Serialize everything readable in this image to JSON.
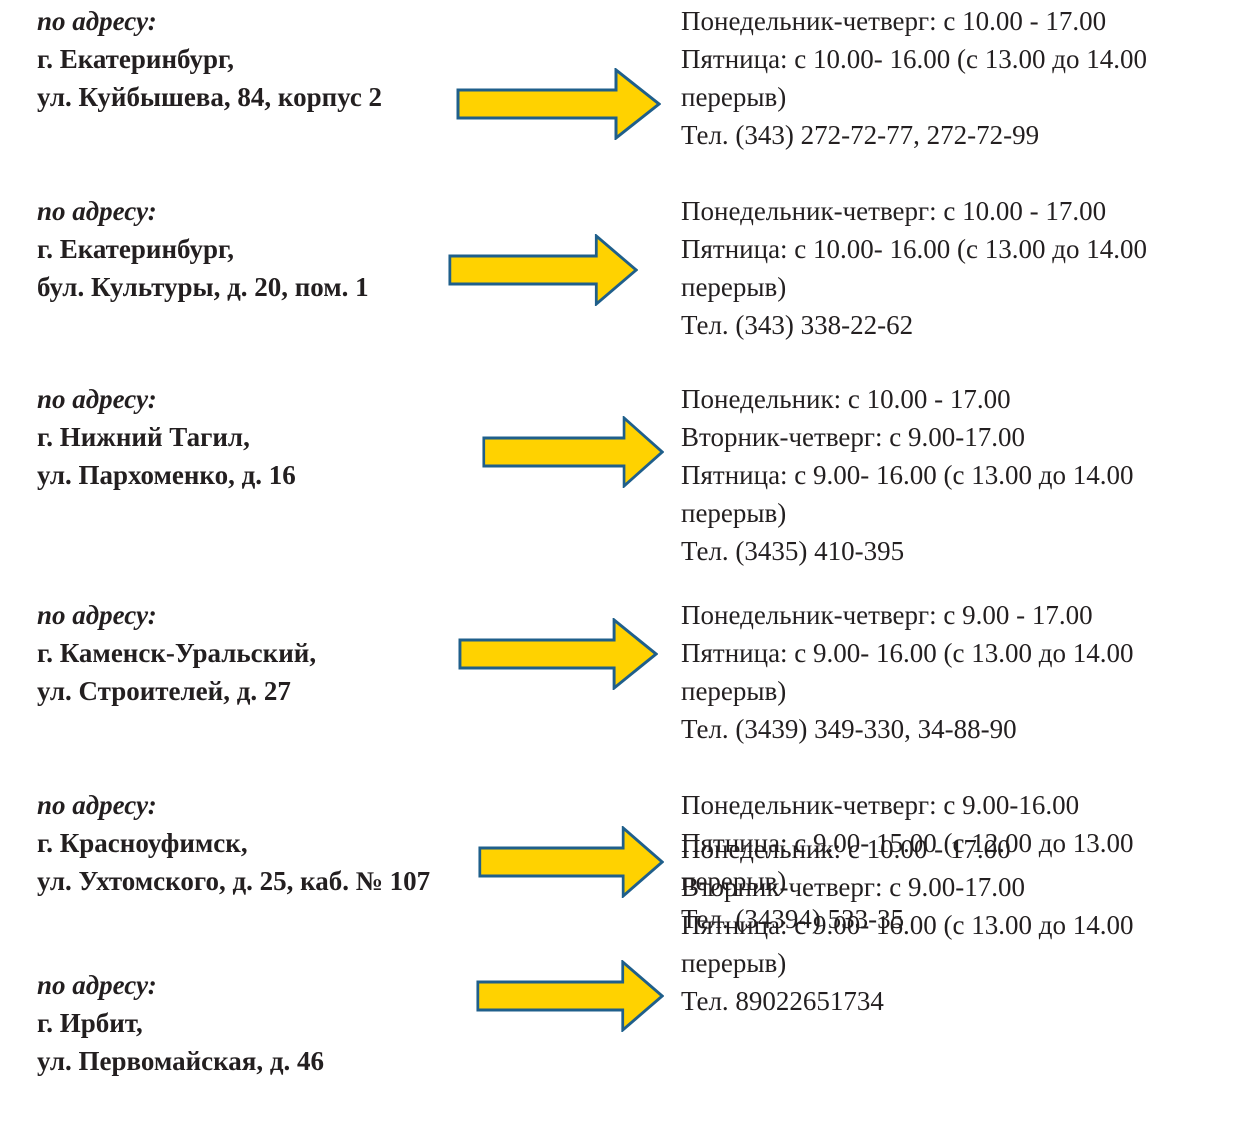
{
  "entries": [
    {
      "lead": "по адресу:",
      "city": "г. Екатеринбург,",
      "street": "ул. Куйбышева, 84, корпус 2",
      "hours": [
        "Понедельник-четверг: с 10.00 - 17.00",
        "Пятница: с 10.00- 16.00 (с 13.00 до 14.00",
        "перерыв)",
        "Тел. (343) 272-72-77, 272-72-99"
      ]
    },
    {
      "lead": "по адресу:",
      "city": "г. Екатеринбург,",
      "street": "бул. Культуры, д. 20, пом. 1",
      "hours": [
        "Понедельник-четверг: с 10.00 - 17.00",
        "Пятница: с 10.00- 16.00 (с 13.00 до 14.00",
        "перерыв)",
        "Тел. (343) 338-22-62"
      ]
    },
    {
      "lead": "по адресу:",
      "city": "г. Нижний Тагил,",
      "street": "ул. Пархоменко, д. 16",
      "hours": [
        "Понедельник: с 10.00 - 17.00",
        "Вторник-четверг: с 9.00-17.00",
        "Пятница: с 9.00- 16.00 (с 13.00 до 14.00",
        "перерыв)",
        "Тел. (3435) 410-395"
      ]
    },
    {
      "lead": "по адресу:",
      "city": "г. Каменск-Уральский,",
      "street": "ул. Строителей, д. 27",
      "hours": [
        "Понедельник-четверг: с 9.00 - 17.00",
        "Пятница: с 9.00- 16.00 (с 13.00 до 14.00",
        "перерыв)",
        "Тел. (3439) 349-330, 34-88-90"
      ]
    },
    {
      "lead": "по адресу:",
      "city": "г. Красноуфимск,",
      "street": "ул. Ухтомского, д. 25, каб. № 107",
      "hours": [
        "Понедельник-четверг: с 9.00-16.00",
        "Пятница: с 9.00- 15.00 (с 12.00 до 13.00",
        "перерыв)",
        "Тел. (34394) 533-35"
      ]
    },
    {
      "lead": "по адресу:",
      "city": "г. Ирбит,",
      "street": "ул. Первомайская, д. 46",
      "hours": [
        "Понедельник: с 10.00 - 17.00",
        "Вторник-четверг: с 9.00-17.00",
        "Пятница: с 9.00- 16.00 (с 13.00 до 14.00",
        "перерыв)",
        "Тел. 89022651734"
      ]
    }
  ],
  "colors": {
    "arrow_fill": "#ffd200",
    "arrow_stroke": "#1f5f8b",
    "text": "#231f20"
  },
  "icons": {
    "arrow": "arrow-right-icon"
  }
}
